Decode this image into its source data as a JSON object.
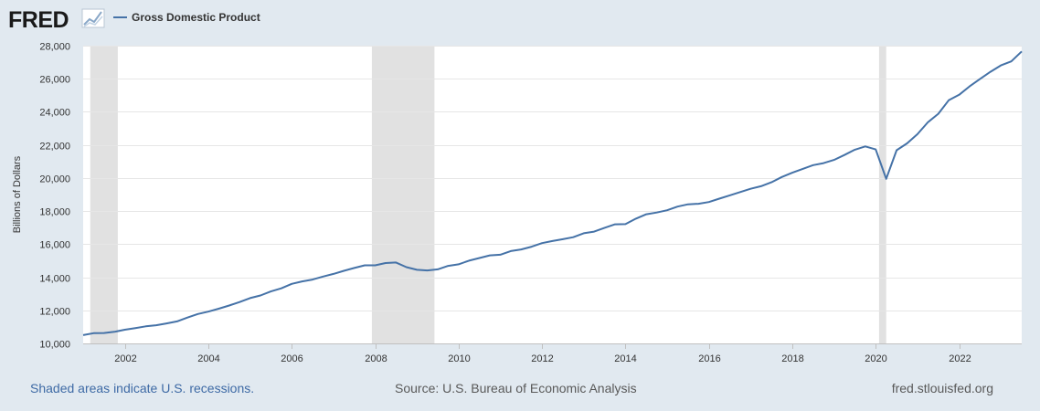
{
  "logo": {
    "text": "FRED"
  },
  "legend": {
    "label": "Gross Domestic Product"
  },
  "footer": {
    "note": "Shaded areas indicate U.S. recessions.",
    "source": "Source: U.S. Bureau of Economic Analysis",
    "site": "fred.stlouisfed.org"
  },
  "colors": {
    "line": "#4572a7",
    "recession": "#e1e1e1",
    "plot_bg": "#ffffff",
    "page_bg": "#e1e9f0",
    "grid": "#e6e6e6",
    "footer_note": "#3e6aa5"
  },
  "chart_data": {
    "type": "line",
    "title": "",
    "xlabel": "",
    "ylabel": "Billions of Dollars",
    "ylim": [
      10000,
      28000
    ],
    "xlim": [
      2001.0,
      2023.5
    ],
    "yticks": [
      10000,
      12000,
      14000,
      16000,
      18000,
      20000,
      22000,
      24000,
      26000,
      28000
    ],
    "ytick_labels": [
      "10,000",
      "12,000",
      "14,000",
      "16,000",
      "18,000",
      "20,000",
      "22,000",
      "24,000",
      "26,000",
      "28,000"
    ],
    "xticks": [
      2002,
      2004,
      2006,
      2008,
      2010,
      2012,
      2014,
      2016,
      2018,
      2020,
      2022
    ],
    "xtick_labels": [
      "2002",
      "2004",
      "2006",
      "2008",
      "2010",
      "2012",
      "2014",
      "2016",
      "2018",
      "2020",
      "2022"
    ],
    "grid": true,
    "legend_position": "top-left",
    "recessions": [
      [
        2001.17,
        2001.83
      ],
      [
        2007.92,
        2009.42
      ],
      [
        2020.08,
        2020.25
      ]
    ],
    "series": [
      {
        "name": "Gross Domestic Product",
        "x": [
          2001.0,
          2001.25,
          2001.5,
          2001.75,
          2002.0,
          2002.25,
          2002.5,
          2002.75,
          2003.0,
          2003.25,
          2003.5,
          2003.75,
          2004.0,
          2004.25,
          2004.5,
          2004.75,
          2005.0,
          2005.25,
          2005.5,
          2005.75,
          2006.0,
          2006.25,
          2006.5,
          2006.75,
          2007.0,
          2007.25,
          2007.5,
          2007.75,
          2008.0,
          2008.25,
          2008.5,
          2008.75,
          2009.0,
          2009.25,
          2009.5,
          2009.75,
          2010.0,
          2010.25,
          2010.5,
          2010.75,
          2011.0,
          2011.25,
          2011.5,
          2011.75,
          2012.0,
          2012.25,
          2012.5,
          2012.75,
          2013.0,
          2013.25,
          2013.5,
          2013.75,
          2014.0,
          2014.25,
          2014.5,
          2014.75,
          2015.0,
          2015.25,
          2015.5,
          2015.75,
          2016.0,
          2016.25,
          2016.5,
          2016.75,
          2017.0,
          2017.25,
          2017.5,
          2017.75,
          2018.0,
          2018.25,
          2018.5,
          2018.75,
          2019.0,
          2019.25,
          2019.5,
          2019.75,
          2020.0,
          2020.25,
          2020.5,
          2020.75,
          2021.0,
          2021.25,
          2021.5,
          2021.75,
          2022.0,
          2022.25,
          2022.5,
          2022.75,
          2023.0,
          2023.25,
          2023.5
        ],
        "values": [
          10500,
          10620,
          10630,
          10700,
          10830,
          10930,
          11030,
          11100,
          11210,
          11330,
          11560,
          11780,
          11920,
          12100,
          12290,
          12500,
          12740,
          12900,
          13140,
          13330,
          13600,
          13750,
          13860,
          14040,
          14200,
          14390,
          14560,
          14720,
          14720,
          14860,
          14890,
          14610,
          14450,
          14410,
          14480,
          14690,
          14780,
          15000,
          15160,
          15320,
          15360,
          15580,
          15680,
          15850,
          16060,
          16190,
          16300,
          16420,
          16660,
          16760,
          16990,
          17200,
          17210,
          17540,
          17810,
          17910,
          18050,
          18270,
          18410,
          18440,
          18550,
          18750,
          18950,
          19150,
          19350,
          19500,
          19740,
          20060,
          20320,
          20550,
          20780,
          20900,
          21090,
          21390,
          21710,
          21910,
          21730,
          19950,
          21680,
          22090,
          22650,
          23370,
          23880,
          24700,
          25030,
          25540,
          25990,
          26420,
          26810,
          27050,
          27650
        ]
      }
    ]
  }
}
